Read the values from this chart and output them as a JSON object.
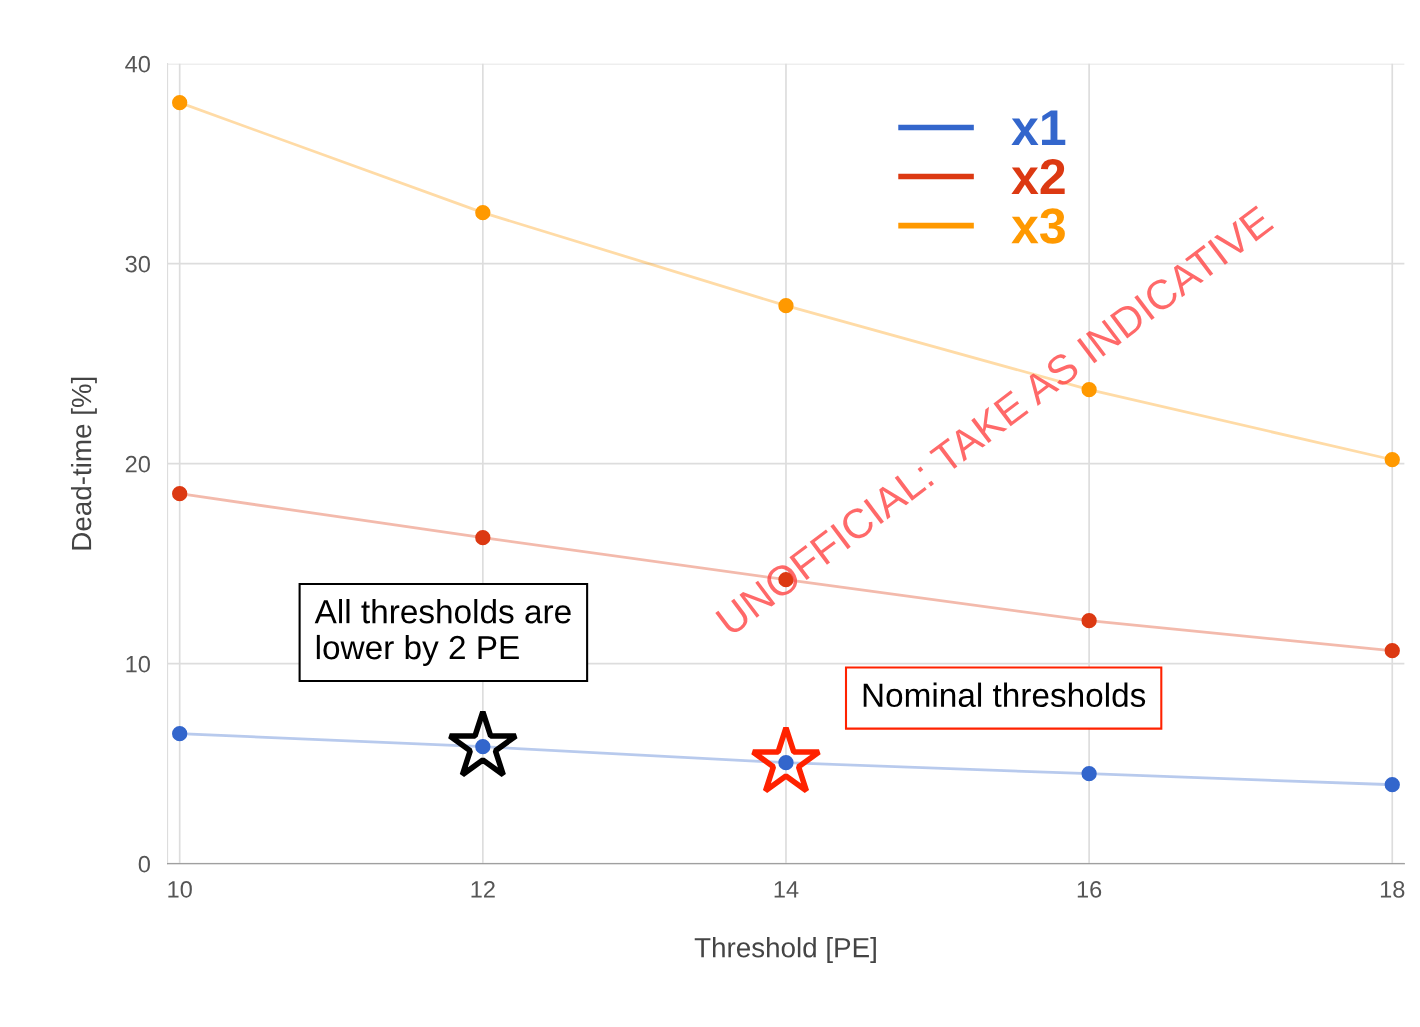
{
  "chart_data": {
    "type": "line",
    "xlabel": "Threshold [PE]",
    "ylabel": "Dead-time [%]",
    "x": [
      10,
      12,
      14,
      16,
      18
    ],
    "series": [
      {
        "name": "x1",
        "color": "#3366cc",
        "values": [
          6.5,
          5.85,
          5.05,
          4.5,
          3.95
        ]
      },
      {
        "name": "x2",
        "color": "#dc3912",
        "values": [
          18.5,
          16.3,
          14.2,
          12.15,
          10.65
        ]
      },
      {
        "name": "x3",
        "color": "#ff9900",
        "values": [
          38.05,
          32.55,
          27.9,
          23.7,
          20.2
        ]
      },
      {
        "type": "scatter",
        "marker": "star",
        "color": "#000000",
        "x": [
          12
        ],
        "values": [
          5.85
        ]
      },
      {
        "type": "scatter",
        "marker": "star",
        "color": "#ff2200",
        "x": [
          14
        ],
        "values": [
          5.05
        ]
      }
    ],
    "xlim": [
      9.92,
      18.08
    ],
    "ylim": [
      0,
      40
    ],
    "xticks": [
      10,
      12,
      14,
      16,
      18
    ],
    "yticks": [
      0,
      10,
      20,
      30,
      40
    ],
    "grid": true,
    "legend": "top",
    "marker": "circle",
    "line_style": "solid",
    "annotations": [
      "All thresholds are\nlower by 2 PE",
      "Nominal thresholds",
      "UNOFFICIAL: TAKE AS INDICATIVE"
    ]
  }
}
